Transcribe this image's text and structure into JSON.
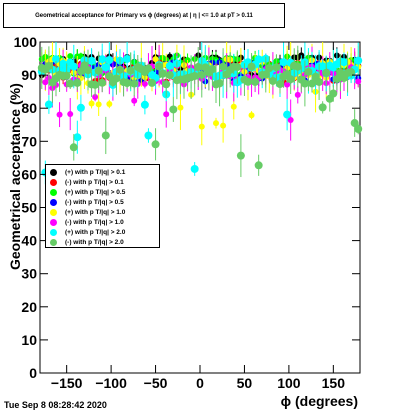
{
  "title": "Geometrical acceptance for Primary vs ɸ (degrees) at | η | <= 1.0 at pT > 0.11",
  "timestamp": "Tue Sep  8 08:28:42 2020",
  "chart_data": {
    "type": "scatter",
    "xlabel": "ϕ (degrees)",
    "ylabel": "Geometrical acceptance (%)",
    "xlim": [
      -180,
      180
    ],
    "ylim": [
      0,
      100
    ],
    "xticks": [
      -150,
      -100,
      -50,
      0,
      50,
      100,
      150
    ],
    "yticks": [
      0,
      10,
      20,
      30,
      40,
      50,
      60,
      70,
      80,
      90,
      100
    ],
    "legend_position": "left-middle",
    "series": [
      {
        "name": "(+) with p T/|q| > 0.1",
        "color": "#000000"
      },
      {
        "name": "(-) with p T/|q| > 0.1",
        "color": "#ff0000"
      },
      {
        "name": "(+) with p T/|q| > 0.5",
        "color": "#00ff00"
      },
      {
        "name": "(-) with p T/|q| > 0.5",
        "color": "#0000ff"
      },
      {
        "name": "(+) with p T/|q| > 1.0",
        "color": "#ffff00"
      },
      {
        "name": "(-) with p T/|q| > 1.0",
        "color": "#ff00ff"
      },
      {
        "name": "(+) with p T/|q| > 2.0",
        "color": "#00ffff"
      },
      {
        "name": "(-) with p T/|q| > 2.0",
        "color": "#66cc66"
      }
    ]
  }
}
